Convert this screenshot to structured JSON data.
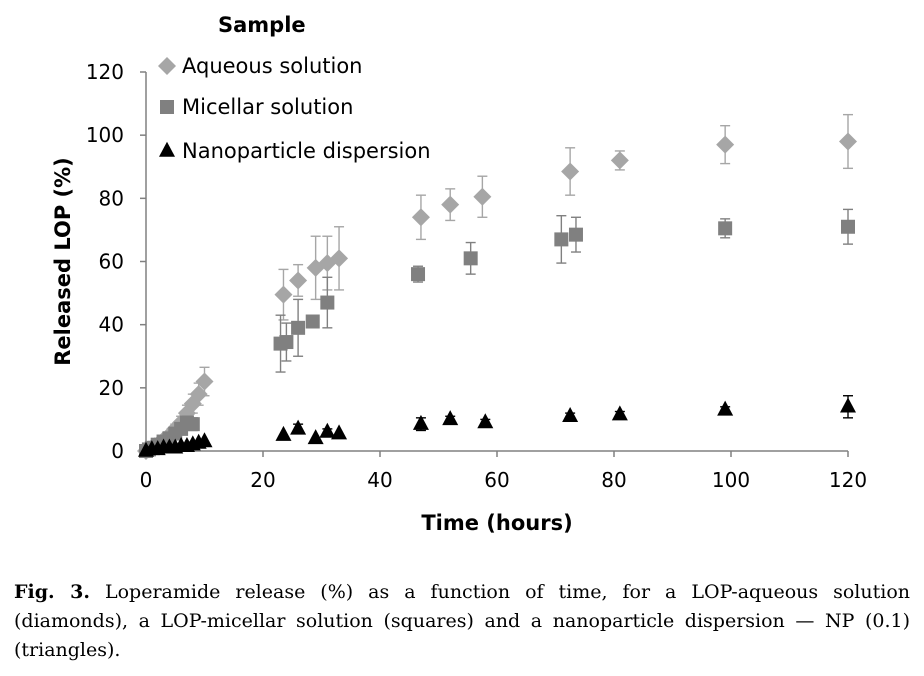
{
  "chart_data": {
    "type": "scatter",
    "title": "",
    "legend_title": "Sample",
    "legend_position": "top-left",
    "xlabel": "Time (hours)",
    "ylabel": "Released LOP (%)",
    "xlim": [
      0,
      120
    ],
    "ylim": [
      0,
      120
    ],
    "xticks": [
      "0",
      "20",
      "40",
      "60",
      "80",
      "100",
      "120"
    ],
    "yticks": [
      "0",
      "20",
      "40",
      "60",
      "80",
      "100",
      "120"
    ],
    "grid": false,
    "series": [
      {
        "name": "Aqueous solution",
        "marker": "diamond",
        "color": "#a6a6a6",
        "x": [
          0,
          0.5,
          1,
          1.5,
          2,
          3,
          4,
          5,
          6,
          7,
          8,
          9,
          10,
          23.5,
          26,
          29,
          31,
          33,
          47,
          52,
          57.5,
          72.5,
          81,
          99,
          120
        ],
        "y": [
          0,
          0.5,
          1,
          1.5,
          2,
          3.5,
          5,
          7,
          9,
          12,
          15,
          18,
          22,
          49.5,
          54,
          58,
          59.5,
          61,
          74,
          78,
          80.5,
          88.5,
          92,
          97,
          98
        ],
        "err": [
          0,
          0,
          0,
          0,
          0,
          0.8,
          1,
          1.5,
          2,
          2.5,
          3,
          3.5,
          4.5,
          8,
          5,
          10,
          8.5,
          10,
          7,
          5,
          6.5,
          7.5,
          3,
          6,
          8.5
        ]
      },
      {
        "name": "Micellar solution",
        "marker": "square",
        "color": "#808080",
        "x": [
          0,
          0.5,
          1,
          2,
          3,
          4,
          5,
          6,
          7,
          8,
          23,
          24,
          26,
          28.5,
          31,
          46.5,
          55.5,
          71,
          73.5,
          99,
          120
        ],
        "y": [
          0,
          0.5,
          1,
          2,
          3,
          4,
          5.5,
          7,
          9,
          8.5,
          34,
          34.5,
          39,
          41,
          47,
          56,
          61,
          67,
          68.5,
          70.5,
          71
        ],
        "err": [
          0,
          0,
          0,
          0,
          0,
          0.5,
          1,
          1.5,
          2,
          2,
          9,
          6,
          9,
          0,
          8,
          2.5,
          5,
          7.5,
          5.5,
          3,
          5.5
        ]
      },
      {
        "name": "Nanoparticle dispersion",
        "marker": "triangle",
        "color": "#000000",
        "x": [
          0,
          1,
          2,
          3,
          4,
          5,
          6,
          7,
          8,
          9,
          10,
          23.5,
          26,
          29,
          31,
          33,
          47,
          52,
          58,
          72.5,
          81,
          99,
          120
        ],
        "y": [
          0,
          0.5,
          0.5,
          1,
          1,
          1,
          1.5,
          1.5,
          2,
          2.5,
          3,
          5,
          7,
          4,
          6,
          5.5,
          8.5,
          10,
          9,
          11,
          11.5,
          13,
          14
        ],
        "err": [
          0,
          0,
          0,
          0,
          0,
          0,
          0,
          0,
          0,
          0,
          0,
          0,
          1.5,
          0,
          1,
          0,
          2,
          1,
          1,
          1,
          1,
          1,
          3.5
        ]
      }
    ]
  },
  "caption": {
    "label": "Fig. 3.",
    "text": " Loperamide release (%) as a function of time, for a LOP-aqueous solution (diamonds), a LOP-micellar solution (squares) and a nanoparticle dispersion — NP (0.1) (triangles)."
  }
}
